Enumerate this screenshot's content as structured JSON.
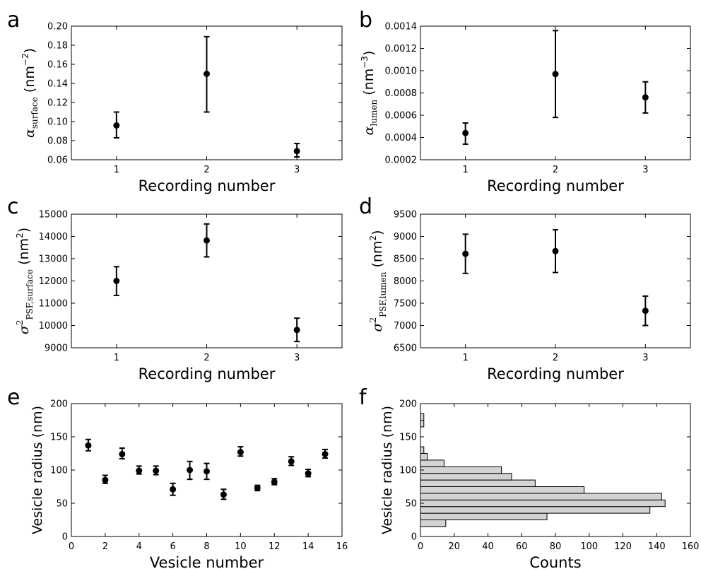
{
  "chart_data": [
    {
      "id": "a",
      "type": "scatter",
      "panel_label": "a",
      "xlabel": "Recording number",
      "ylabel": {
        "symbol": "α",
        "subscript": "surface",
        "unit": "(nm",
        "unit_sup": "−2",
        "unit_close": ")"
      },
      "xlim": [
        0.5,
        3.5
      ],
      "ylim": [
        0.06,
        0.2
      ],
      "xticks": [
        1,
        2,
        3
      ],
      "xtick_labels": [
        "1",
        "2",
        "3"
      ],
      "yticks": [
        0.06,
        0.08,
        0.1,
        0.12,
        0.14,
        0.16,
        0.18,
        0.2
      ],
      "ytick_labels": [
        "0.06",
        "0.08",
        "0.10",
        "0.12",
        "0.14",
        "0.16",
        "0.18",
        "0.20"
      ],
      "x": [
        1,
        2,
        3
      ],
      "y": [
        0.096,
        0.15,
        0.069
      ],
      "err_low": [
        0.083,
        0.11,
        0.063
      ],
      "err_high": [
        0.11,
        0.189,
        0.077
      ]
    },
    {
      "id": "b",
      "type": "scatter",
      "panel_label": "b",
      "xlabel": "Recording number",
      "ylabel": {
        "symbol": "α",
        "subscript": "lumen",
        "unit": "(nm",
        "unit_sup": "−3",
        "unit_close": ")"
      },
      "xlim": [
        0.5,
        3.5
      ],
      "ylim": [
        0.0002,
        0.0014
      ],
      "xticks": [
        1,
        2,
        3
      ],
      "xtick_labels": [
        "1",
        "2",
        "3"
      ],
      "yticks": [
        0.0002,
        0.0004,
        0.0006,
        0.0008,
        0.001,
        0.0012,
        0.0014
      ],
      "ytick_labels": [
        "0.0002",
        "0.0004",
        "0.0006",
        "0.0008",
        "0.0010",
        "0.0012",
        "0.0014"
      ],
      "x": [
        1,
        2,
        3
      ],
      "y": [
        0.00044,
        0.00097,
        0.00076
      ],
      "err_low": [
        0.00034,
        0.00058,
        0.00062
      ],
      "err_high": [
        0.00053,
        0.00136,
        0.0009
      ]
    },
    {
      "id": "c",
      "type": "scatter",
      "panel_label": "c",
      "xlabel": "Recording number",
      "ylabel": {
        "symbol": "σ",
        "sup": "2",
        "subscript": "PSF,surface",
        "unit": "(nm",
        "unit_sup": "2",
        "unit_close": ")"
      },
      "xlim": [
        0.5,
        3.5
      ],
      "ylim": [
        9000,
        15000
      ],
      "xticks": [
        1,
        2,
        3
      ],
      "xtick_labels": [
        "1",
        "2",
        "3"
      ],
      "yticks": [
        9000,
        10000,
        11000,
        12000,
        13000,
        14000,
        15000
      ],
      "ytick_labels": [
        "9000",
        "10000",
        "11000",
        "12000",
        "13000",
        "14000",
        "15000"
      ],
      "x": [
        1,
        2,
        3
      ],
      "y": [
        12000,
        13820,
        9800
      ],
      "err_low": [
        11350,
        13080,
        9280
      ],
      "err_high": [
        12640,
        14560,
        10330
      ]
    },
    {
      "id": "d",
      "type": "scatter",
      "panel_label": "d",
      "xlabel": "Recording number",
      "ylabel": {
        "symbol": "σ",
        "sup": "2",
        "subscript": "PSF,lumen",
        "unit": "(nm",
        "unit_sup": "2",
        "unit_close": ")"
      },
      "xlim": [
        0.5,
        3.5
      ],
      "ylim": [
        6500,
        9500
      ],
      "xticks": [
        1,
        2,
        3
      ],
      "xtick_labels": [
        "1",
        "2",
        "3"
      ],
      "yticks": [
        6500,
        7000,
        7500,
        8000,
        8500,
        9000,
        9500
      ],
      "ytick_labels": [
        "6500",
        "7000",
        "7500",
        "8000",
        "8500",
        "9000",
        "9500"
      ],
      "x": [
        1,
        2,
        3
      ],
      "y": [
        8610,
        8670,
        7330
      ],
      "err_low": [
        8170,
        8190,
        7000
      ],
      "err_high": [
        9050,
        9150,
        7660
      ]
    },
    {
      "id": "e",
      "type": "scatter",
      "panel_label": "e",
      "xlabel": "Vesicle number",
      "ylabel": {
        "text": "Vesicle radius (nm)"
      },
      "xlim": [
        0,
        16
      ],
      "ylim": [
        0,
        200
      ],
      "xticks": [
        0,
        2,
        4,
        6,
        8,
        10,
        12,
        14,
        16
      ],
      "xtick_labels": [
        "0",
        "2",
        "4",
        "6",
        "8",
        "10",
        "12",
        "14",
        "16"
      ],
      "yticks": [
        0,
        50,
        100,
        150,
        200
      ],
      "ytick_labels": [
        "0",
        "50",
        "100",
        "150",
        "200"
      ],
      "x": [
        1,
        2,
        3,
        4,
        5,
        6,
        7,
        8,
        9,
        10,
        11,
        12,
        13,
        14,
        15
      ],
      "y": [
        137,
        85,
        124,
        99,
        99,
        71,
        100,
        98,
        63,
        127,
        73,
        82,
        113,
        95,
        124
      ],
      "err_low": [
        129,
        80,
        117,
        94,
        93,
        62,
        86,
        86,
        56,
        121,
        69,
        78,
        107,
        90,
        118
      ],
      "err_high": [
        146,
        92,
        133,
        106,
        106,
        80,
        113,
        110,
        71,
        135,
        77,
        87,
        120,
        101,
        131
      ]
    },
    {
      "id": "f",
      "type": "bar",
      "orientation": "horizontal",
      "panel_label": "f",
      "xlabel": "Counts",
      "ylabel": {
        "text": "Vesicle radius (nm)"
      },
      "xlim": [
        0,
        160
      ],
      "ylim": [
        0,
        200
      ],
      "xticks": [
        0,
        20,
        40,
        60,
        80,
        100,
        120,
        140,
        160
      ],
      "xtick_labels": [
        "0",
        "20",
        "40",
        "60",
        "80",
        "100",
        "120",
        "140",
        "160"
      ],
      "yticks": [
        0,
        50,
        100,
        150,
        200
      ],
      "ytick_labels": [
        "0",
        "50",
        "100",
        "150",
        "200"
      ],
      "bin_width": 10,
      "bins": [
        {
          "lo": 15,
          "hi": 25,
          "count": 15
        },
        {
          "lo": 25,
          "hi": 35,
          "count": 75
        },
        {
          "lo": 35,
          "hi": 45,
          "count": 136
        },
        {
          "lo": 45,
          "hi": 55,
          "count": 145
        },
        {
          "lo": 55,
          "hi": 65,
          "count": 143
        },
        {
          "lo": 65,
          "hi": 75,
          "count": 97
        },
        {
          "lo": 75,
          "hi": 85,
          "count": 68
        },
        {
          "lo": 85,
          "hi": 95,
          "count": 54
        },
        {
          "lo": 95,
          "hi": 105,
          "count": 48
        },
        {
          "lo": 105,
          "hi": 115,
          "count": 14
        },
        {
          "lo": 115,
          "hi": 125,
          "count": 4
        },
        {
          "lo": 125,
          "hi": 135,
          "count": 2
        },
        {
          "lo": 165,
          "hi": 175,
          "count": 2
        },
        {
          "lo": 175,
          "hi": 185,
          "count": 2
        }
      ],
      "bar_color": "#d3d3d3"
    }
  ],
  "colors": {
    "marker": "#000000",
    "axes": "#000000",
    "bar_fill": "#d3d3d3",
    "bar_edge": "#000000"
  }
}
